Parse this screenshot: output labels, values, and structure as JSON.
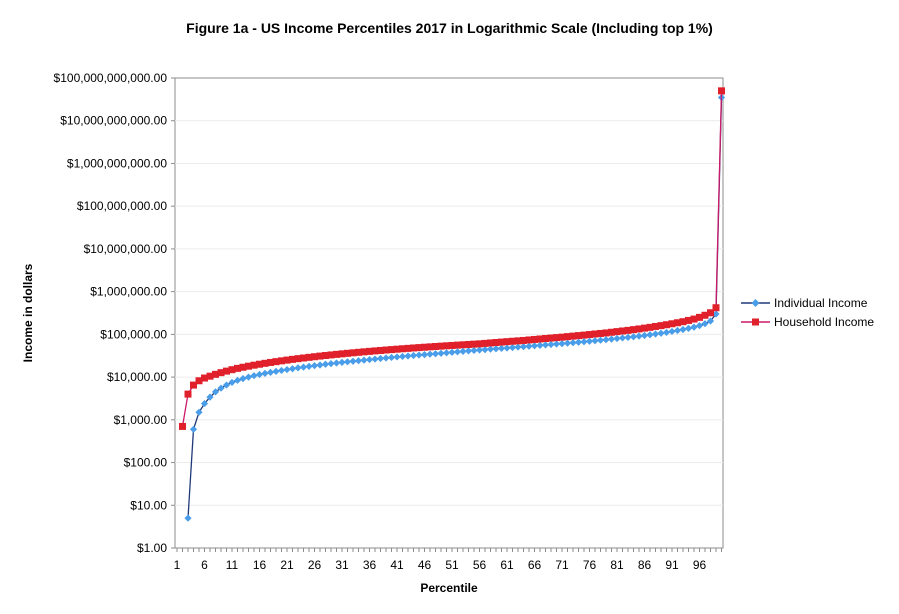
{
  "chart_data": {
    "type": "line",
    "title": "Figure 1a - US Income Percentiles 2017 in Logarithmic Scale (Including top 1%)",
    "xlabel": "Percentile",
    "ylabel": "Income in dollars",
    "y_scale": "log",
    "ylim": [
      1,
      100000000000
    ],
    "xlim": [
      1,
      100
    ],
    "y_tick_labels": [
      "$1.00",
      "$10.00",
      "$100.00",
      "$1,000.00",
      "$10,000.00",
      "$100,000.00",
      "$1,000,000.00",
      "$10,000,000.00",
      "$100,000,000.00",
      "$1,000,000,000.00",
      "$10,000,000,000.00",
      "$100,000,000,000.00"
    ],
    "x_tick_labels": [
      "1",
      "6",
      "11",
      "16",
      "21",
      "26",
      "31",
      "36",
      "41",
      "46",
      "51",
      "56",
      "61",
      "66",
      "71",
      "76",
      "81",
      "86",
      "91",
      "96"
    ],
    "x_ticks": [
      1,
      6,
      11,
      16,
      21,
      26,
      31,
      36,
      41,
      46,
      51,
      56,
      61,
      66,
      71,
      76,
      81,
      86,
      91,
      96
    ],
    "grid": "horizontal",
    "legend_position": "right",
    "series": [
      {
        "name": "Individual Income",
        "color": "#4a9de8",
        "line_color": "#1f3a7a",
        "marker": "diamond",
        "x": [
          3,
          4,
          5,
          6,
          7,
          8,
          9,
          10,
          11,
          12,
          13,
          14,
          15,
          16,
          17,
          18,
          19,
          20,
          21,
          22,
          23,
          24,
          25,
          26,
          27,
          28,
          29,
          30,
          31,
          32,
          33,
          34,
          35,
          36,
          37,
          38,
          39,
          40,
          41,
          42,
          43,
          44,
          45,
          46,
          47,
          48,
          49,
          50,
          51,
          52,
          53,
          54,
          55,
          56,
          57,
          58,
          59,
          60,
          61,
          62,
          63,
          64,
          65,
          66,
          67,
          68,
          69,
          70,
          71,
          72,
          73,
          74,
          75,
          76,
          77,
          78,
          79,
          80,
          81,
          82,
          83,
          84,
          85,
          86,
          87,
          88,
          89,
          90,
          91,
          92,
          93,
          94,
          95,
          96,
          97,
          98,
          99,
          100
        ],
        "values": [
          5,
          600,
          1500,
          2400,
          3400,
          4500,
          5500,
          6500,
          7500,
          8400,
          9200,
          10000,
          10800,
          11500,
          12200,
          12900,
          13600,
          14300,
          15000,
          15700,
          16400,
          17100,
          17800,
          18500,
          19200,
          20000,
          20700,
          21400,
          22100,
          22800,
          23500,
          24200,
          25000,
          25700,
          26400,
          27200,
          28000,
          28800,
          29600,
          30400,
          31200,
          32000,
          32800,
          33600,
          34400,
          35200,
          36000,
          37000,
          38000,
          39000,
          40000,
          41000,
          42000,
          43000,
          44000,
          45000,
          46000,
          47000,
          48000,
          49200,
          50400,
          51600,
          52800,
          54000,
          55300,
          56600,
          58000,
          59400,
          60800,
          62300,
          63800,
          65500,
          67200,
          69000,
          71000,
          73000,
          75000,
          77500,
          80000,
          82500,
          85000,
          88000,
          91000,
          94000,
          98000,
          102000,
          106000,
          111000,
          117000,
          123000,
          130000,
          138000,
          148000,
          160000,
          178000,
          205000,
          300000,
          35000000000
        ]
      },
      {
        "name": "Household Income",
        "color": "#e0202a",
        "line_color": "#cc1a6a",
        "marker": "square",
        "x": [
          2,
          3,
          4,
          5,
          6,
          7,
          8,
          9,
          10,
          11,
          12,
          13,
          14,
          15,
          16,
          17,
          18,
          19,
          20,
          21,
          22,
          23,
          24,
          25,
          26,
          27,
          28,
          29,
          30,
          31,
          32,
          33,
          34,
          35,
          36,
          37,
          38,
          39,
          40,
          41,
          42,
          43,
          44,
          45,
          46,
          47,
          48,
          49,
          50,
          51,
          52,
          53,
          54,
          55,
          56,
          57,
          58,
          59,
          60,
          61,
          62,
          63,
          64,
          65,
          66,
          67,
          68,
          69,
          70,
          71,
          72,
          73,
          74,
          75,
          76,
          77,
          78,
          79,
          80,
          81,
          82,
          83,
          84,
          85,
          86,
          87,
          88,
          89,
          90,
          91,
          92,
          93,
          94,
          95,
          96,
          97,
          98,
          99,
          100
        ],
        "values": [
          700,
          4000,
          6500,
          8200,
          9500,
          10500,
          11600,
          12700,
          13800,
          14900,
          16000,
          17000,
          18000,
          19000,
          20000,
          21000,
          22000,
          23000,
          24000,
          25000,
          26000,
          27000,
          28000,
          29000,
          30000,
          31000,
          32000,
          33000,
          34000,
          35000,
          36000,
          37000,
          38000,
          39000,
          40000,
          41000,
          42000,
          43000,
          44000,
          45000,
          46000,
          47000,
          48000,
          49000,
          50000,
          51000,
          52000,
          53000,
          54000,
          55000,
          56000,
          57000,
          58000,
          59000,
          60000,
          61500,
          63000,
          64500,
          66000,
          67500,
          69000,
          70500,
          72000,
          74000,
          76000,
          78000,
          80000,
          82000,
          84000,
          86000,
          88500,
          91000,
          93500,
          96000,
          99000,
          102000,
          105000,
          108000,
          112000,
          116000,
          120000,
          124000,
          129000,
          134000,
          140000,
          146000,
          153000,
          160000,
          168000,
          177000,
          187000,
          198000,
          212000,
          228000,
          250000,
          280000,
          320000,
          420000,
          50000000000
        ]
      }
    ]
  }
}
